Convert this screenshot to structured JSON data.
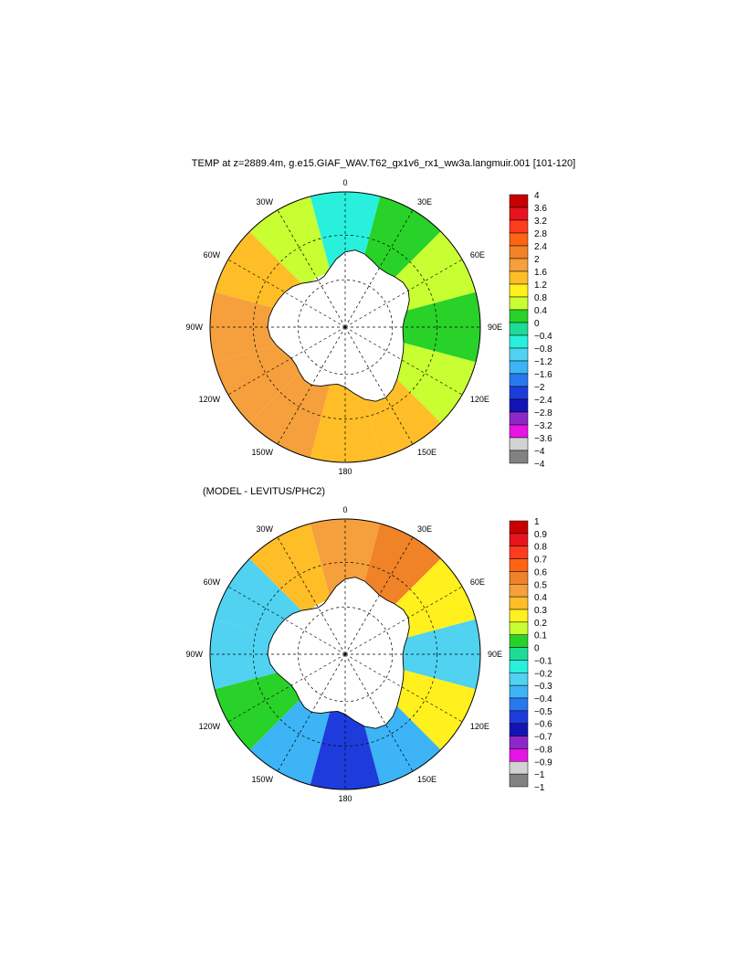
{
  "chart_data": [
    {
      "type": "heatmap",
      "projection": "south-polar-stereographic",
      "title": "TEMP at z=2889.4m, g.e15.GIAF_WAV.T62_gx1v6_rx1_ww3a.langmuir.001 [101-120]",
      "longitude_labels": [
        "0",
        "30E",
        "60E",
        "90E",
        "120E",
        "150E",
        "180",
        "150W",
        "120W",
        "90W",
        "60W",
        "30W"
      ],
      "colorbar": {
        "levels": [
          "4",
          "3.6",
          "3.2",
          "2.8",
          "2.4",
          "2",
          "1.6",
          "1.2",
          "0.8",
          "0.4",
          "0",
          "−0.4",
          "−0.8",
          "−1.2",
          "−1.6",
          "−2",
          "−2.4",
          "−2.8",
          "−3.2",
          "−3.6",
          "−4"
        ],
        "colors": [
          "#c80000",
          "#e6141e",
          "#ff3c1e",
          "#ff6414",
          "#f08228",
          "#f5a03c",
          "#ffbe28",
          "#fff01e",
          "#c8ff32",
          "#28d228",
          "#1edc96",
          "#28f0dc",
          "#50d2f0",
          "#3cb4f5",
          "#2878f0",
          "#1e3cdc",
          "#1414b4",
          "#8c28c8",
          "#e614e6",
          "#d2d2d2",
          "#828282"
        ]
      },
      "field_by_longitude": [
        {
          "lon": "0",
          "value": -0.2
        },
        {
          "lon": "30E",
          "value": 0.5
        },
        {
          "lon": "60E",
          "value": 0.6
        },
        {
          "lon": "90E",
          "value": 0.2
        },
        {
          "lon": "120E",
          "value": 0.8
        },
        {
          "lon": "150E",
          "value": 1.4
        },
        {
          "lon": "180",
          "value": 1.5
        },
        {
          "lon": "150W",
          "value": 1.8
        },
        {
          "lon": "120W",
          "value": 1.8
        },
        {
          "lon": "90W",
          "value": 1.8
        },
        {
          "lon": "60W",
          "value": 1.4
        },
        {
          "lon": "30W",
          "value": 0.6
        }
      ]
    },
    {
      "type": "heatmap",
      "projection": "south-polar-stereographic",
      "title": "(MODEL - LEVITUS/PHC2)",
      "longitude_labels": [
        "0",
        "30E",
        "60E",
        "90E",
        "120E",
        "150E",
        "180",
        "150W",
        "120W",
        "90W",
        "60W",
        "30W"
      ],
      "colorbar": {
        "levels": [
          "1",
          "0.9",
          "0.8",
          "0.7",
          "0.6",
          "0.5",
          "0.4",
          "0.3",
          "0.2",
          "0.1",
          "0",
          "−0.1",
          "−0.2",
          "−0.3",
          "−0.4",
          "−0.5",
          "−0.6",
          "−0.7",
          "−0.8",
          "−0.9",
          "−1"
        ],
        "colors": [
          "#c80000",
          "#e6141e",
          "#ff3c1e",
          "#ff6414",
          "#f08228",
          "#f5a03c",
          "#ffbe28",
          "#fff01e",
          "#c8ff32",
          "#28d228",
          "#1edc96",
          "#28f0dc",
          "#50d2f0",
          "#3cb4f5",
          "#2878f0",
          "#1e3cdc",
          "#1414b4",
          "#8c28c8",
          "#e614e6",
          "#d2d2d2",
          "#828282"
        ]
      },
      "field_by_longitude": [
        {
          "lon": "0",
          "value": 0.5
        },
        {
          "lon": "30E",
          "value": 0.6
        },
        {
          "lon": "60E",
          "value": 0.3
        },
        {
          "lon": "90E",
          "value": -0.2
        },
        {
          "lon": "120E",
          "value": 0.3
        },
        {
          "lon": "150E",
          "value": -0.3
        },
        {
          "lon": "180",
          "value": -0.5
        },
        {
          "lon": "150W",
          "value": -0.3
        },
        {
          "lon": "120W",
          "value": 0.1
        },
        {
          "lon": "90W",
          "value": -0.15
        },
        {
          "lon": "60W",
          "value": -0.2
        },
        {
          "lon": "30W",
          "value": 0.4
        }
      ]
    }
  ]
}
